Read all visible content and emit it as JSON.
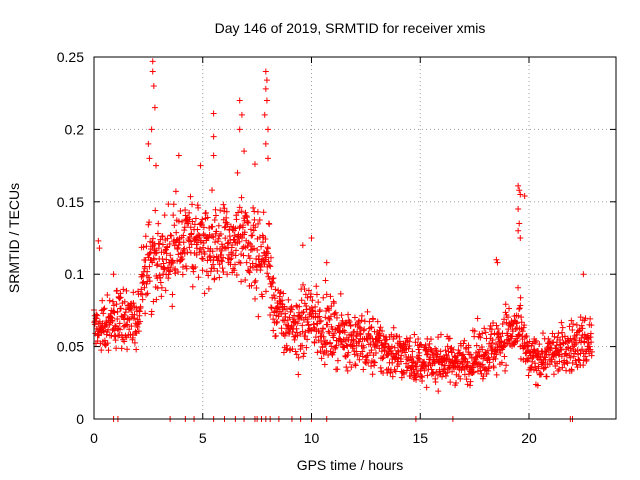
{
  "chart_data": {
    "type": "scatter",
    "title": "Day 146 of 2019, SRMTID for receiver xmis",
    "xlabel": "GPS time / hours",
    "ylabel": "SRMTID / TECUs",
    "xlim": [
      0,
      24
    ],
    "ylim": [
      0,
      0.25
    ],
    "grid": true,
    "marker": "plus",
    "color": "#ff0000",
    "x_ticks": [
      0,
      5,
      10,
      15,
      20
    ],
    "x_tick_labels": [
      "0",
      "5",
      "10",
      "15",
      "20"
    ],
    "y_ticks": [
      0,
      0.05,
      0.1,
      0.15,
      0.2,
      0.25
    ],
    "y_tick_labels": [
      "0",
      "0.05",
      "0.1",
      "0.15",
      "0.2",
      "0.25"
    ],
    "time_range": [
      0,
      22.9
    ],
    "profile": [
      {
        "t": 0.0,
        "mean": 0.068,
        "spread": 0.02
      },
      {
        "t": 1.0,
        "mean": 0.068,
        "spread": 0.02
      },
      {
        "t": 2.0,
        "mean": 0.07,
        "spread": 0.02
      },
      {
        "t": 2.3,
        "mean": 0.11,
        "spread": 0.03
      },
      {
        "t": 3.0,
        "mean": 0.11,
        "spread": 0.03
      },
      {
        "t": 4.0,
        "mean": 0.12,
        "spread": 0.03
      },
      {
        "t": 5.0,
        "mean": 0.125,
        "spread": 0.03
      },
      {
        "t": 6.0,
        "mean": 0.12,
        "spread": 0.03
      },
      {
        "t": 7.0,
        "mean": 0.12,
        "spread": 0.03
      },
      {
        "t": 8.0,
        "mean": 0.11,
        "spread": 0.03
      },
      {
        "t": 8.3,
        "mean": 0.08,
        "spread": 0.025
      },
      {
        "t": 9.0,
        "mean": 0.06,
        "spread": 0.02
      },
      {
        "t": 10.0,
        "mean": 0.07,
        "spread": 0.025
      },
      {
        "t": 11.0,
        "mean": 0.06,
        "spread": 0.02
      },
      {
        "t": 13.0,
        "mean": 0.05,
        "spread": 0.02
      },
      {
        "t": 15.0,
        "mean": 0.04,
        "spread": 0.015
      },
      {
        "t": 17.0,
        "mean": 0.04,
        "spread": 0.015
      },
      {
        "t": 18.5,
        "mean": 0.05,
        "spread": 0.02
      },
      {
        "t": 19.0,
        "mean": 0.06,
        "spread": 0.02
      },
      {
        "t": 19.6,
        "mean": 0.06,
        "spread": 0.02
      },
      {
        "t": 20.0,
        "mean": 0.04,
        "spread": 0.015
      },
      {
        "t": 21.0,
        "mean": 0.045,
        "spread": 0.015
      },
      {
        "t": 22.9,
        "mean": 0.055,
        "spread": 0.02
      }
    ],
    "points_per_hour": 80,
    "highlights": [
      {
        "x": 2.7,
        "y": 0.247
      },
      {
        "x": 2.7,
        "y": 0.24
      },
      {
        "x": 2.75,
        "y": 0.23
      },
      {
        "x": 2.8,
        "y": 0.215
      },
      {
        "x": 2.65,
        "y": 0.2
      },
      {
        "x": 2.5,
        "y": 0.19
      },
      {
        "x": 2.55,
        "y": 0.18
      },
      {
        "x": 2.85,
        "y": 0.175
      },
      {
        "x": 5.5,
        "y": 0.211
      },
      {
        "x": 5.5,
        "y": 0.195
      },
      {
        "x": 5.5,
        "y": 0.182
      },
      {
        "x": 6.7,
        "y": 0.22
      },
      {
        "x": 6.8,
        "y": 0.21
      },
      {
        "x": 6.7,
        "y": 0.2
      },
      {
        "x": 6.9,
        "y": 0.185
      },
      {
        "x": 6.6,
        "y": 0.17
      },
      {
        "x": 7.9,
        "y": 0.24
      },
      {
        "x": 7.95,
        "y": 0.234
      },
      {
        "x": 7.9,
        "y": 0.228
      },
      {
        "x": 7.95,
        "y": 0.22
      },
      {
        "x": 7.85,
        "y": 0.21
      },
      {
        "x": 8.0,
        "y": 0.2
      },
      {
        "x": 7.9,
        "y": 0.19
      },
      {
        "x": 8.0,
        "y": 0.18
      },
      {
        "x": 3.9,
        "y": 0.182
      },
      {
        "x": 4.9,
        "y": 0.175
      },
      {
        "x": 7.4,
        "y": 0.176
      },
      {
        "x": 19.5,
        "y": 0.161
      },
      {
        "x": 19.55,
        "y": 0.158
      },
      {
        "x": 19.6,
        "y": 0.155
      },
      {
        "x": 19.8,
        "y": 0.154
      },
      {
        "x": 19.5,
        "y": 0.145
      },
      {
        "x": 19.55,
        "y": 0.135
      },
      {
        "x": 19.5,
        "y": 0.13
      },
      {
        "x": 19.6,
        "y": 0.125
      },
      {
        "x": 18.5,
        "y": 0.11
      },
      {
        "x": 18.55,
        "y": 0.108
      },
      {
        "x": 22.5,
        "y": 0.1
      },
      {
        "x": 0.2,
        "y": 0.123
      },
      {
        "x": 0.25,
        "y": 0.118
      },
      {
        "x": 0.9,
        "y": 0.1
      },
      {
        "x": 10.0,
        "y": 0.125
      },
      {
        "x": 9.6,
        "y": 0.12
      },
      {
        "x": 10.7,
        "y": 0.108
      }
    ],
    "zero_points_x": [
      0.9,
      1.1,
      3.5,
      4.2,
      4.6,
      5.5,
      6.0,
      6.5,
      6.9,
      7.4,
      7.5,
      7.7,
      7.9,
      8.1,
      8.5,
      9.1,
      9.5,
      10.0,
      10.7,
      14.8,
      16.5,
      21.9,
      22.0
    ]
  }
}
